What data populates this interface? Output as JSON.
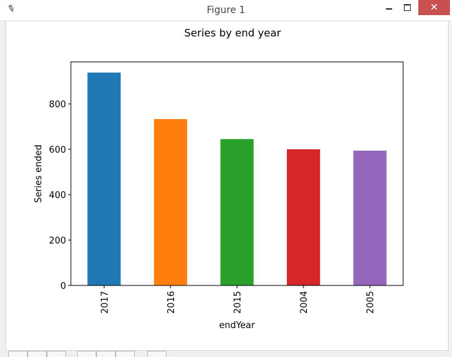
{
  "window": {
    "title": "Figure 1",
    "close_glyph": "✕",
    "icon": "feather-icon"
  },
  "chart_data": {
    "type": "bar",
    "title": "Series by end year",
    "xlabel": "endYear",
    "ylabel": "Series ended",
    "categories": [
      "2017",
      "2016",
      "2015",
      "2004",
      "2005"
    ],
    "values": [
      938,
      733,
      645,
      600,
      594
    ],
    "colors": [
      "#1f77b4",
      "#ff7f0e",
      "#2ca02c",
      "#d62728",
      "#9467bd"
    ],
    "yticks": [
      "0",
      "200",
      "400",
      "600",
      "800"
    ],
    "ylim": [
      0,
      985
    ],
    "grid": false,
    "legend": "none"
  }
}
